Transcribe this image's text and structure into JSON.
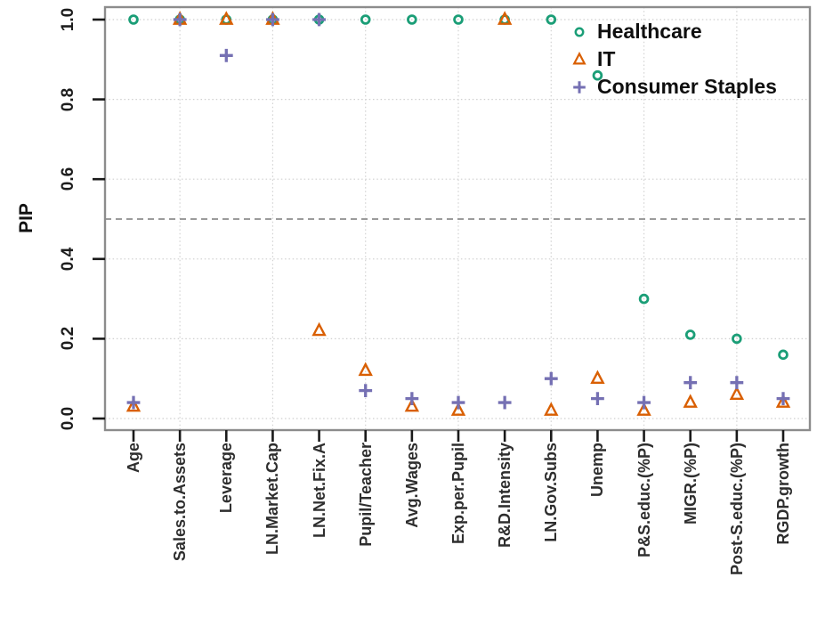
{
  "chart_data": {
    "type": "scatter",
    "title": "",
    "xlabel": "",
    "ylabel": "PIP",
    "ylim": [
      0.0,
      1.0
    ],
    "yticks": [
      0.0,
      0.2,
      0.4,
      0.6,
      0.8,
      1.0
    ],
    "ytick_labels": [
      "0.0",
      "0.2",
      "0.4",
      "0.6",
      "0.8",
      "1.0"
    ],
    "reference_line_y": 0.5,
    "grid": "light dotted horizontal lines at each y tick; light dotted vertical lines at alternate categories; darker dashed reference line at 0.5",
    "legend_position": "top-right inside plot",
    "categories": [
      "Age",
      "Sales.to.Assets",
      "Leverage",
      "LN.Market.Cap",
      "LN.Net.Fix.A",
      "Pupil/Teacher",
      "Avg.Wages",
      "Exp.per.Pupil",
      "R&D.Intensity",
      "LN.Gov.Subs",
      "Unemp",
      "P&S.educ.(%P)",
      "MIGR.(%P)",
      "Post-S.educ.(%P)",
      "RGDP.growth"
    ],
    "series": [
      {
        "name": "Healthcare",
        "marker": "circle",
        "color": "#1B9E77",
        "values": [
          1.0,
          1.0,
          1.0,
          1.0,
          1.0,
          1.0,
          1.0,
          1.0,
          1.0,
          1.0,
          0.86,
          0.3,
          0.21,
          0.2,
          0.16
        ]
      },
      {
        "name": "IT",
        "marker": "triangle",
        "color": "#D95F02",
        "values": [
          0.03,
          1.0,
          1.0,
          1.0,
          0.22,
          0.12,
          0.03,
          0.02,
          1.0,
          0.02,
          0.1,
          0.02,
          0.04,
          0.06,
          0.04
        ]
      },
      {
        "name": "Consumer Staples",
        "marker": "plus",
        "color": "#7570B3",
        "values": [
          0.04,
          1.0,
          0.91,
          1.0,
          1.0,
          0.07,
          0.05,
          0.04,
          0.04,
          0.1,
          0.05,
          0.04,
          0.09,
          0.09,
          0.05
        ]
      }
    ]
  }
}
